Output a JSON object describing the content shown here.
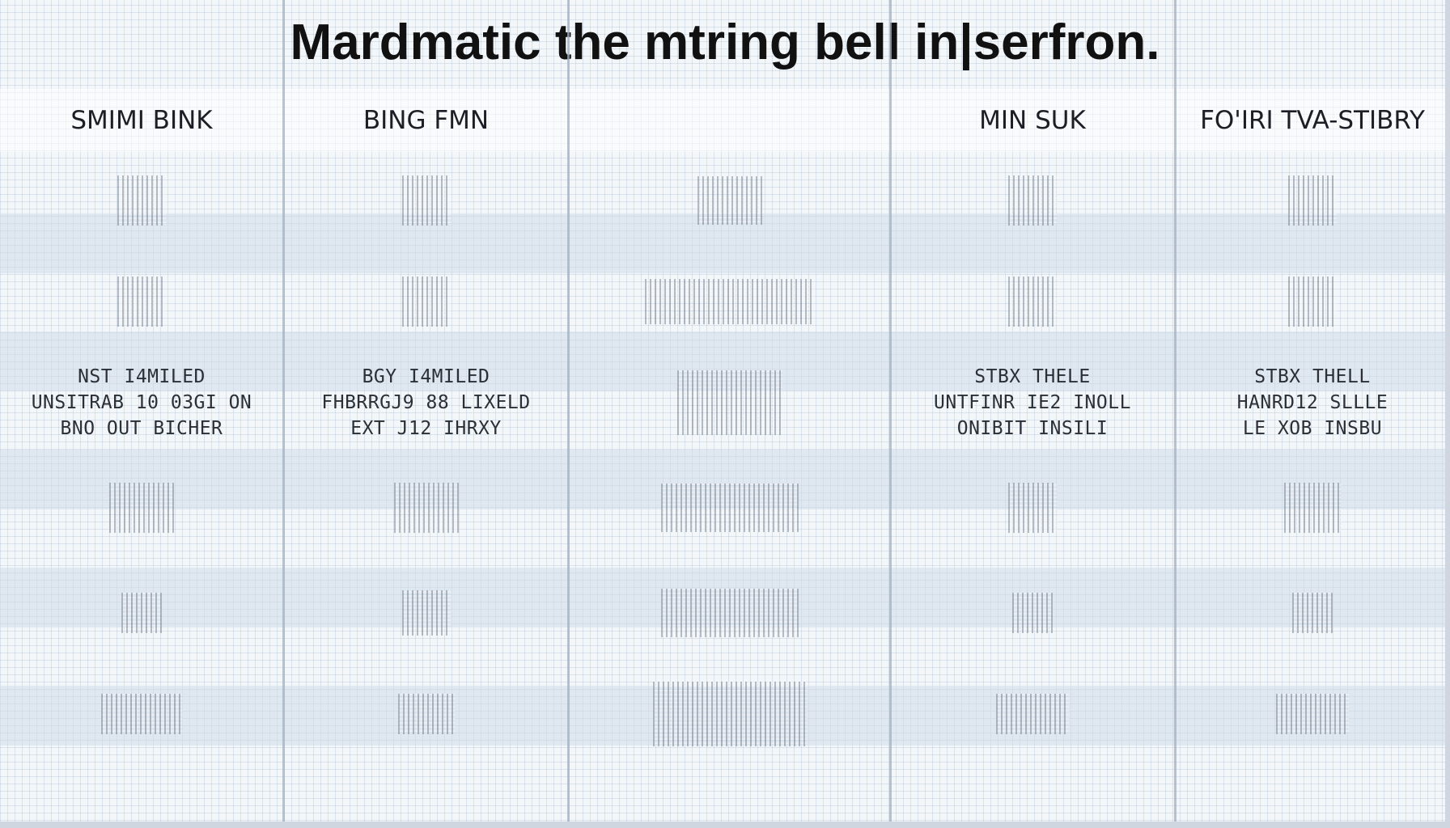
{
  "title": "Mardmatic the mtring bell in|serfron.",
  "columns": [
    {
      "header": "SMIMI BINK",
      "lines": [
        "NST I4MILED",
        "UNSITRAB 10 03GI ON",
        "BNO OUT BICHER"
      ]
    },
    {
      "header": "BING FMN",
      "lines": [
        "BGY I4MILED",
        "FHBRRGJ9 88 LIXELD",
        "EXT J12 IHRXY"
      ]
    },
    {
      "header": "",
      "lines": []
    },
    {
      "header": "MIN SUK",
      "lines": [
        "STBX THELE",
        "UNTFINR IE2 INOLL",
        "ONIBIT INSILI"
      ]
    },
    {
      "header": "FO'IRI TVA-STIBRY",
      "lines": [
        "STBX THELL",
        "HANRD12 SLLLE",
        "LE XOB INSBU"
      ]
    }
  ]
}
